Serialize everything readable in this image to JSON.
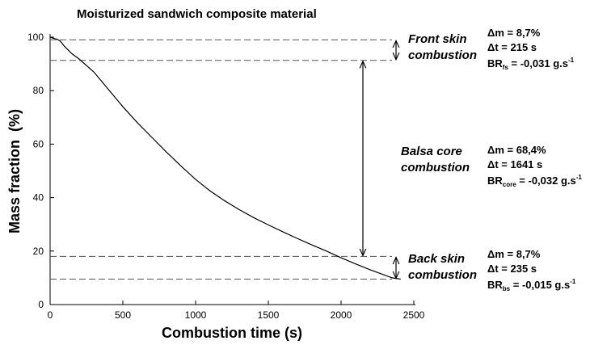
{
  "chart_data": {
    "type": "line",
    "title": "Moisturized sandwich composite material",
    "x_label": "Combustion time (s)",
    "y_label": "Mass fraction  (%)",
    "x": [
      0,
      20,
      50,
      70,
      100,
      150,
      200,
      300,
      400,
      500,
      600,
      700,
      800,
      900,
      1000,
      1100,
      1200,
      1300,
      1400,
      1500,
      1600,
      1700,
      1800,
      1900,
      2000,
      2100,
      2200,
      2300,
      2350,
      2400,
      2410
    ],
    "series": [
      {
        "color": "#000000",
        "values": [
          100,
          99.6,
          99.2,
          98.5,
          96.5,
          93.8,
          91.8,
          87,
          80.5,
          74,
          68,
          62.5,
          57,
          51.8,
          46.8,
          42.5,
          38.8,
          35.5,
          32.5,
          29.8,
          27.2,
          24.7,
          22.3,
          20,
          17.5,
          15.2,
          13,
          11,
          10,
          9.6,
          9.5
        ]
      }
    ],
    "xlim": [
      0,
      2500
    ],
    "xticks": [
      0,
      500,
      1000,
      1500,
      2000,
      2500
    ],
    "ylim": [
      0,
      100
    ],
    "yticks": [
      0,
      20,
      40,
      60,
      80,
      100
    ],
    "grid": false,
    "reference_lines": [
      99,
      91.3,
      18,
      9.5
    ],
    "annotations": [
      {
        "label_lines": [
          "Front skin",
          "combustion"
        ],
        "delta_m": "Δm = 8,7%",
        "delta_t": "Δt = 215 s",
        "br": {
          "base": "BR",
          "sub": "fs",
          "text": " = -0,031 g.s",
          "sup": "-1"
        }
      },
      {
        "label_lines": [
          "Balsa core",
          "combustion"
        ],
        "delta_m": "Δm = 68,4%",
        "delta_t": "Δt = 1641 s",
        "br": {
          "base": "BR",
          "sub": "core",
          "text": " = -0,032 g.s",
          "sup": "-1"
        }
      },
      {
        "label_lines": [
          "Back skin",
          "combustion"
        ],
        "delta_m": "Δm = 8,7%",
        "delta_t": "Δt = 235 s",
        "br": {
          "base": "BR",
          "sub": "bs",
          "text": " = -0,015 g.s",
          "sup": "-1"
        }
      }
    ]
  }
}
